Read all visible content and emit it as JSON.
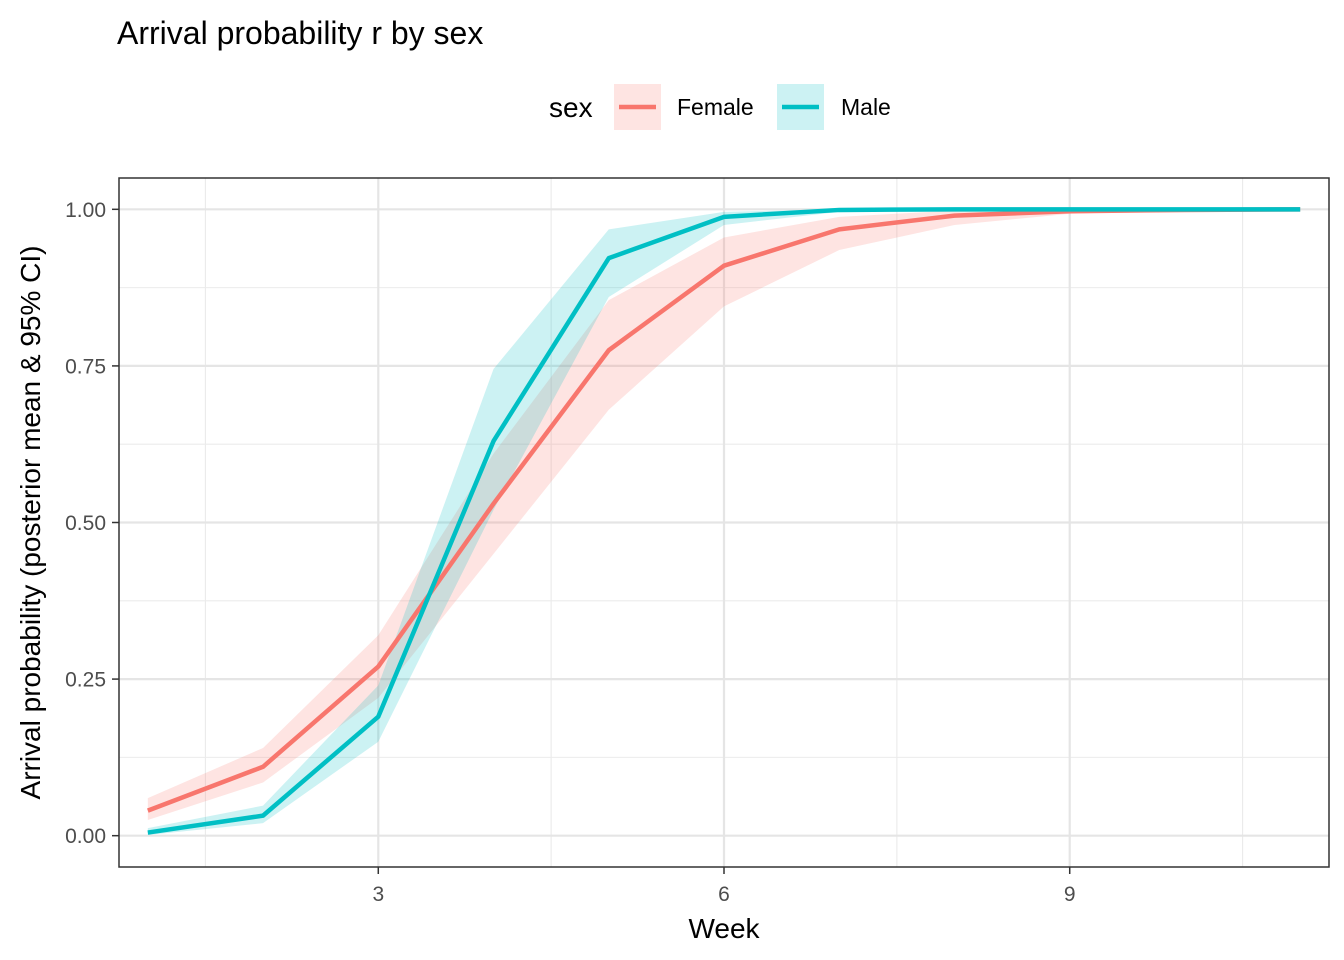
{
  "chart_data": {
    "type": "line",
    "title": "Arrival probability r by sex",
    "xlabel": "Week",
    "ylabel": "Arrival probability (posterior mean & 95% CI)",
    "xlim": [
      0.75,
      11.25
    ],
    "ylim": [
      -0.05,
      1.05
    ],
    "x_ticks": [
      3,
      6,
      9
    ],
    "x_tick_labels": [
      "3",
      "6",
      "9"
    ],
    "y_ticks": [
      0,
      0.25,
      0.5,
      0.75,
      1.0
    ],
    "y_tick_labels": [
      "0.00",
      "0.25",
      "0.50",
      "0.75",
      "1.00"
    ],
    "grid": true,
    "legend": {
      "title": "sex",
      "position": "top"
    },
    "x": [
      1,
      2,
      3,
      4,
      5,
      6,
      7,
      8,
      9,
      10,
      11
    ],
    "series": [
      {
        "name": "Female",
        "color": "#F8766D",
        "mean": [
          0.04,
          0.11,
          0.27,
          0.53,
          0.775,
          0.91,
          0.968,
          0.99,
          0.997,
          0.999,
          1.0
        ],
        "lower": [
          0.025,
          0.085,
          0.22,
          0.45,
          0.68,
          0.845,
          0.935,
          0.975,
          0.993,
          0.998,
          1.0
        ],
        "upper": [
          0.06,
          0.14,
          0.32,
          0.61,
          0.855,
          0.955,
          0.988,
          0.998,
          1.0,
          1.0,
          1.0
        ]
      },
      {
        "name": "Male",
        "color": "#00BFC4",
        "mean": [
          0.005,
          0.032,
          0.19,
          0.63,
          0.922,
          0.988,
          0.999,
          1.0,
          1.0,
          1.0,
          1.0
        ],
        "lower": [
          0.001,
          0.02,
          0.15,
          0.52,
          0.86,
          0.975,
          0.996,
          0.999,
          1.0,
          1.0,
          1.0
        ],
        "upper": [
          0.012,
          0.048,
          0.24,
          0.745,
          0.968,
          0.996,
          1.0,
          1.0,
          1.0,
          1.0,
          1.0
        ]
      }
    ]
  }
}
